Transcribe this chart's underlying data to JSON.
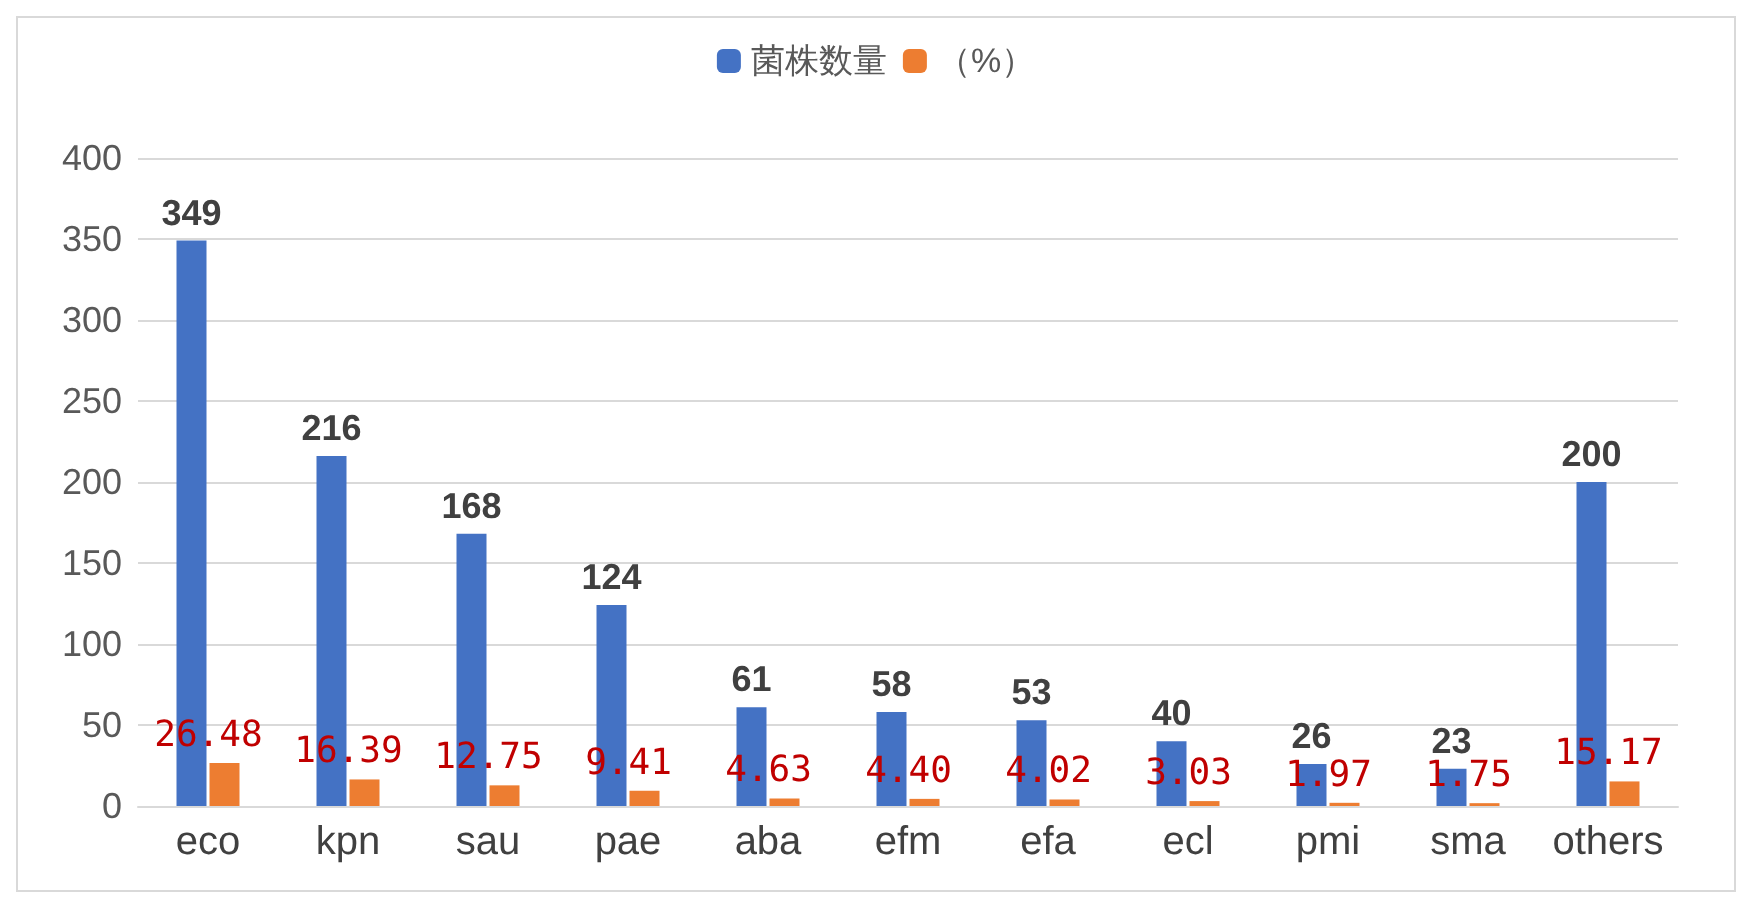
{
  "chart_data": {
    "type": "bar",
    "categories": [
      "eco",
      "kpn",
      "sau",
      "pae",
      "aba",
      "efm",
      "efa",
      "ecl",
      "pmi",
      "sma",
      "others"
    ],
    "series": [
      {
        "name": "菌株数量",
        "color": "#4472c4",
        "values": [
          349,
          216,
          168,
          124,
          61,
          58,
          53,
          40,
          26,
          23,
          200
        ],
        "value_labels": [
          "349",
          "216",
          "168",
          "124",
          "61",
          "58",
          "53",
          "40",
          "26",
          "23",
          "200"
        ]
      },
      {
        "name": "（%）",
        "color": "#ed7d31",
        "values": [
          26.48,
          16.39,
          12.75,
          9.41,
          4.63,
          4.4,
          4.02,
          3.03,
          1.97,
          1.75,
          15.17
        ],
        "value_labels": [
          "26.48",
          "16.39",
          "12.75",
          "9.41",
          "4.63",
          "4.40",
          "4.02",
          "3.03",
          "1.97",
          "1.75",
          "15.17"
        ]
      }
    ],
    "ylim": [
      0,
      400
    ],
    "yticks": [
      0,
      50,
      100,
      150,
      200,
      250,
      300,
      350,
      400
    ],
    "grid": "y",
    "legend": "top"
  }
}
